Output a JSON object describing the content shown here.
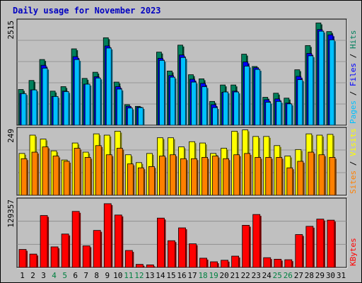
{
  "title": "Daily usage for November 2023",
  "colors": {
    "background": "#c0c0c0",
    "hits": "#00805c",
    "files": "#0000ff",
    "pages": "#00c0ff",
    "visits": "#ffff00",
    "sites": "#ff8000",
    "kbytes": "#ff0000",
    "title": "#0000c0",
    "weekend_label": "#008040"
  },
  "chart_data": [
    {
      "type": "bar",
      "name": "hits-files-pages",
      "max_label": "2515",
      "ylim": [
        0,
        2515
      ],
      "legend": [
        {
          "label": "Pages",
          "color": "#00c0ff"
        },
        {
          "label": "Files",
          "color": "#0000ff"
        },
        {
          "label": "Hits",
          "color": "#00805c"
        }
      ],
      "categories": [
        "1",
        "2",
        "3",
        "4",
        "5",
        "6",
        "7",
        "8",
        "9",
        "10",
        "11",
        "12",
        "13",
        "14",
        "15",
        "16",
        "17",
        "18",
        "19",
        "20",
        "21",
        "22",
        "23",
        "24",
        "25",
        "26",
        "27",
        "28",
        "29",
        "30",
        "31"
      ],
      "series": [
        {
          "name": "Hits",
          "values": [
            870,
            1090,
            1600,
            830,
            940,
            1860,
            1140,
            1290,
            2130,
            1050,
            500,
            460,
            0,
            1780,
            1320,
            1950,
            1230,
            1130,
            580,
            980,
            980,
            1730,
            1430,
            680,
            780,
            660,
            1350,
            1940,
            2490,
            2280,
            0
          ]
        },
        {
          "name": "Files",
          "values": [
            770,
            860,
            1460,
            700,
            830,
            1670,
            1000,
            1180,
            1930,
            940,
            460,
            440,
            0,
            1630,
            1210,
            1710,
            1120,
            1020,
            500,
            800,
            830,
            1540,
            1400,
            620,
            640,
            540,
            1190,
            1750,
            2330,
            2200,
            0
          ]
        },
        {
          "name": "Pages",
          "values": [
            770,
            860,
            1390,
            700,
            820,
            1600,
            1000,
            1150,
            1880,
            880,
            420,
            430,
            0,
            1580,
            1170,
            1650,
            1050,
            940,
            430,
            810,
            810,
            1440,
            1360,
            560,
            580,
            520,
            1110,
            1690,
            2290,
            2080,
            0
          ]
        }
      ]
    },
    {
      "type": "bar",
      "name": "visits-sites",
      "max_label": "249",
      "ylim": [
        0,
        249
      ],
      "legend": [
        {
          "label": "Sites",
          "color": "#ff8000"
        },
        {
          "label": "Visits",
          "color": "#ffff00"
        }
      ],
      "categories": [
        "1",
        "2",
        "3",
        "4",
        "5",
        "6",
        "7",
        "8",
        "9",
        "10",
        "11",
        "12",
        "13",
        "14",
        "15",
        "16",
        "17",
        "18",
        "19",
        "20",
        "21",
        "22",
        "23",
        "24",
        "25",
        "26",
        "27",
        "28",
        "29",
        "30",
        "31"
      ],
      "series": [
        {
          "name": "Visits",
          "values": [
            160,
            230,
            215,
            170,
            135,
            200,
            165,
            235,
            230,
            245,
            155,
            125,
            160,
            220,
            220,
            185,
            205,
            200,
            160,
            180,
            245,
            250,
            225,
            225,
            190,
            150,
            175,
            235,
            230,
            233,
            0
          ]
        },
        {
          "name": "Sites",
          "values": [
            140,
            165,
            185,
            150,
            130,
            180,
            145,
            190,
            155,
            180,
            120,
            105,
            110,
            150,
            155,
            140,
            140,
            145,
            150,
            140,
            155,
            160,
            145,
            145,
            145,
            105,
            130,
            165,
            155,
            145,
            0
          ]
        }
      ]
    },
    {
      "type": "bar",
      "name": "kbytes",
      "max_label": "129357",
      "ylim": [
        0,
        129357
      ],
      "legend": [
        {
          "label": "KBytes",
          "color": "#ff0000"
        }
      ],
      "categories": [
        "1",
        "2",
        "3",
        "4",
        "5",
        "6",
        "7",
        "8",
        "9",
        "10",
        "11",
        "12",
        "13",
        "14",
        "15",
        "16",
        "17",
        "18",
        "19",
        "20",
        "21",
        "22",
        "23",
        "24",
        "25",
        "26",
        "27",
        "28",
        "29",
        "30",
        "31"
      ],
      "series": [
        {
          "name": "KBytes",
          "values": [
            35000,
            26000,
            101000,
            40000,
            65000,
            109000,
            42000,
            72000,
            124000,
            102000,
            33000,
            6000,
            5000,
            96000,
            52000,
            77000,
            46000,
            18000,
            11000,
            14000,
            22000,
            82000,
            103000,
            19000,
            16000,
            15000,
            64000,
            80000,
            94000,
            92000,
            0
          ]
        }
      ]
    }
  ],
  "weekend_days": [
    4,
    5,
    11,
    12,
    18,
    19,
    25,
    26
  ]
}
